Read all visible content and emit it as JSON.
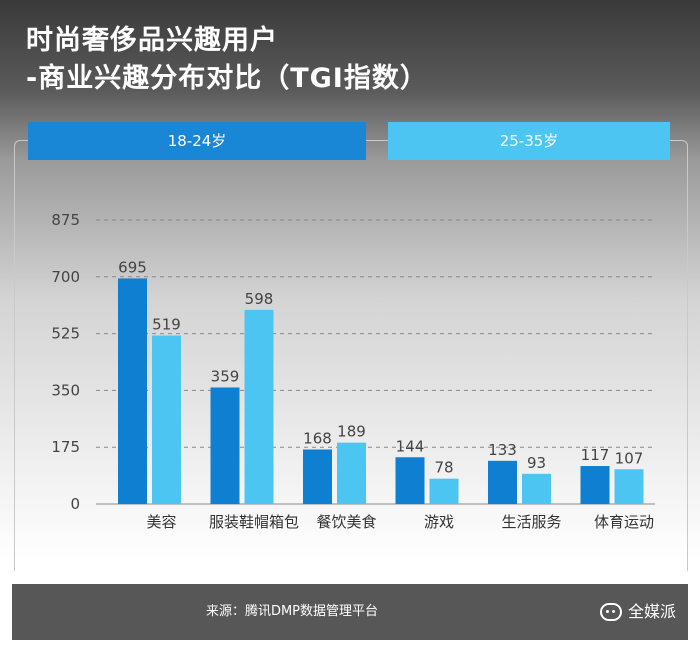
{
  "title_line1": "时尚奢侈品兴趣用户",
  "title_line2": "-商业兴趣分布对比（TGI指数）",
  "source": "来源：腾讯DMP数据管理平台",
  "brand": "全媒派",
  "colors": {
    "series_a": "#0f7fd2",
    "series_b": "#4cc5f3",
    "grid": "#8a8a8a",
    "text": "#333333"
  },
  "chart_data": {
    "type": "bar",
    "categories": [
      "美容",
      "服装鞋帽箱包",
      "餐饮美食",
      "游戏",
      "生活服务",
      "体育运动"
    ],
    "series": [
      {
        "name": "18-24岁",
        "values": [
          695,
          359,
          168,
          144,
          133,
          117
        ]
      },
      {
        "name": "25-35岁",
        "values": [
          519,
          598,
          189,
          78,
          93,
          107
        ]
      }
    ],
    "yticks": [
      0,
      175,
      350,
      525,
      700,
      875
    ],
    "ylim": [
      0,
      875
    ],
    "grid": true,
    "legend": "top"
  }
}
